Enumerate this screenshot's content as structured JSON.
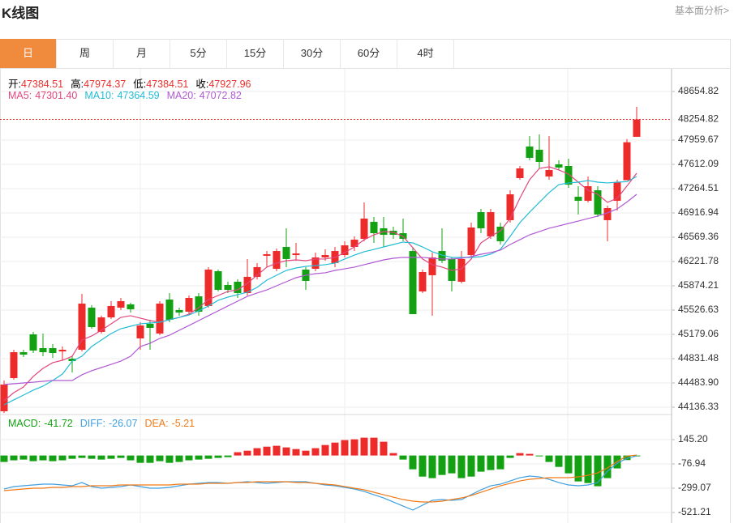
{
  "header": {
    "title": "K线图",
    "link": "基本面分析>"
  },
  "tabs": {
    "items": [
      "日",
      "周",
      "月",
      "5分",
      "15分",
      "30分",
      "60分",
      "4时"
    ],
    "active": 0,
    "active_color": "#f08a3c"
  },
  "chart_data": [
    {
      "type": "candlestick",
      "up_color": "#ee2b2b",
      "down_color": "#13a113",
      "info": [
        {
          "name": "开:",
          "value": 47384.51
        },
        {
          "name": "高:",
          "value": 47974.37
        },
        {
          "name": "低:",
          "value": 47384.51
        },
        {
          "name": "收:",
          "value": 47927.96
        }
      ],
      "info_color": "#e8312f",
      "last_price": 48254.82,
      "last_price_color": "#e03030",
      "ylim": [
        44032,
        48979
      ],
      "yticks": [
        48654.82,
        47959.67,
        47612.09,
        47264.51,
        46916.94,
        46569.36,
        46221.78,
        45874.21,
        45526.63,
        45179.06,
        44831.48,
        {
          "value": 44483.9,
          "label": "44483.90"
        },
        44136.33
      ],
      "grid": true,
      "open": [
        44078,
        44553,
        44924,
        45179,
        44982,
        44982,
        44935,
        44831,
        44959,
        45561,
        45214,
        45422,
        45561,
        45608,
        45121,
        45330,
        45191,
        45677,
        45527,
        45503,
        45723,
        45585,
        46083,
        45886,
        45932,
        45770,
        46002,
        46303,
        46117,
        46430,
        46314,
        46106,
        46117,
        46280,
        46199,
        46314,
        46430,
        46546,
        46789,
        46697,
        46662,
        46627,
        46372,
        45793,
        46025,
        46372,
        46257,
        45932,
        46314,
        46928,
        46581,
        46720,
        46813,
        47415,
        47867,
        47821,
        47438,
        47612,
        47589,
        47148,
        47090,
        47241,
        46813,
        47090,
        47384.51,
        48006
      ],
      "high": [
        44519,
        44959,
        44959,
        45214,
        45191,
        45040,
        45005,
        44866,
        45758,
        45597,
        45446,
        45654,
        45700,
        45631,
        45353,
        45388,
        45654,
        45770,
        45561,
        45735,
        45770,
        46141,
        46106,
        45932,
        45967,
        46257,
        46199,
        46372,
        46407,
        46697,
        46488,
        46141,
        46349,
        46395,
        46430,
        46511,
        46581,
        47068,
        46859,
        46859,
        46720,
        46836,
        46430,
        46106,
        46349,
        46697,
        46280,
        46372,
        46778,
        46975,
        46975,
        46778,
        47241,
        47589,
        48018,
        48041,
        48018,
        47670,
        47693,
        47299,
        47438,
        47299,
        47021,
        47392,
        47974.37,
        48435
      ],
      "low": [
        44055,
        44530,
        44854,
        44912,
        44866,
        44842,
        44808,
        44634,
        44935,
        45260,
        45191,
        45399,
        45527,
        45491,
        44959,
        44959,
        45167,
        45353,
        45446,
        45468,
        45446,
        45561,
        45793,
        45770,
        45700,
        45735,
        45967,
        46141,
        46083,
        46141,
        46233,
        45816,
        46083,
        46233,
        46141,
        46280,
        46372,
        46511,
        46488,
        46430,
        46546,
        46511,
        45468,
        45770,
        45446,
        46199,
        45793,
        45909,
        46280,
        46627,
        46546,
        46465,
        46778,
        47392,
        47670,
        47554,
        47392,
        47531,
        47276,
        46894,
        47068,
        46859,
        46511,
        46952,
        47384.51,
        48006
      ],
      "close": [
        44461,
        44924,
        44889,
        44947,
        44924,
        44912,
        44959,
        44796,
        45619,
        45283,
        45422,
        45585,
        45654,
        45538,
        45306,
        45272,
        45619,
        45388,
        45491,
        45700,
        45503,
        46106,
        45816,
        45816,
        45770,
        46002,
        46141,
        46326,
        46372,
        46257,
        46337,
        45944,
        46280,
        46314,
        46372,
        46453,
        46534,
        46836,
        46627,
        46604,
        46604,
        46546,
        45468,
        46071,
        46280,
        46233,
        45944,
        46257,
        46708,
        46697,
        46928,
        46511,
        47183,
        47554,
        47705,
        47647,
        47531,
        47566,
        47322,
        47090,
        47299,
        46894,
        46986,
        47357,
        47927.96,
        48254.82
      ],
      "series": [
        {
          "name": "MA5:",
          "color": "#e2467e",
          "current": {
            "value": 47301.4,
            "label": "47301.40"
          },
          "values": [
            44229,
            44345,
            44426,
            44577,
            44692,
            44774,
            44808,
            44866,
            45098,
            45156,
            45237,
            45330,
            45422,
            45446,
            45411,
            45376,
            45353,
            45388,
            45422,
            45468,
            45561,
            45677,
            45735,
            45793,
            45816,
            45909,
            46025,
            46141,
            46199,
            46233,
            46245,
            46233,
            46257,
            46257,
            46280,
            46349,
            46430,
            46534,
            46604,
            46650,
            46639,
            46581,
            46419,
            46257,
            46176,
            46141,
            46094,
            46117,
            46257,
            46488,
            46581,
            46662,
            46836,
            47128,
            47392,
            47554,
            47577,
            47531,
            47473,
            47357,
            47241,
            47183,
            47068,
            47126,
            47301.4,
            47485
          ]
        },
        {
          "name": "MA10:",
          "color": "#22bcd4",
          "current": 47364.59,
          "values": [
            44171,
            44241,
            44310,
            44380,
            44438,
            44519,
            44611,
            44796,
            44866,
            45005,
            45098,
            45191,
            45260,
            45295,
            45330,
            45341,
            45353,
            45388,
            45422,
            45457,
            45515,
            45585,
            45666,
            45712,
            45747,
            45782,
            45851,
            45955,
            46025,
            46094,
            46129,
            46152,
            46164,
            46176,
            46199,
            46257,
            46314,
            46361,
            46395,
            46430,
            46465,
            46500,
            46488,
            46430,
            46361,
            46314,
            46280,
            46280,
            46280,
            46291,
            46326,
            46395,
            46581,
            46778,
            46928,
            47068,
            47207,
            47322,
            47346,
            47357,
            47380,
            47357,
            47346,
            47357,
            47364.59,
            47438
          ]
        },
        {
          "name": "MA20:",
          "color": "#b059d4",
          "current": 47072.82,
          "values": [
            44461,
            44472,
            44484,
            44495,
            44507,
            44519,
            44519,
            44519,
            44600,
            44658,
            44704,
            44750,
            44796,
            44866,
            45005,
            45052,
            45121,
            45167,
            45237,
            45306,
            45376,
            45446,
            45515,
            45585,
            45654,
            45723,
            45770,
            45816,
            45874,
            45932,
            45990,
            46025,
            46048,
            46060,
            46094,
            46117,
            46141,
            46176,
            46210,
            46245,
            46268,
            46280,
            46280,
            46280,
            46268,
            46257,
            46257,
            46268,
            46291,
            46326,
            46349,
            46384,
            46465,
            46534,
            46604,
            46650,
            46697,
            46731,
            46766,
            46800,
            46836,
            46871,
            46917,
            46975,
            47072.82,
            47183
          ]
        }
      ]
    },
    {
      "type": "macd",
      "ylim": [
        -610,
        375
      ],
      "yticks": [
        {
          "value": 145.2,
          "label": "145.20"
        },
        -76.94,
        -299.07,
        -521.21
      ],
      "grid": true,
      "histogram": {
        "name": "MACD:",
        "color": "#13a113",
        "up_color": "#ee2b2b",
        "down_color": "#13a113",
        "current": -41.72,
        "values": [
          -59,
          -44,
          -37,
          -52,
          -44,
          -52,
          -44,
          -30,
          -22,
          -30,
          -37,
          -30,
          -22,
          -44,
          -67,
          -67,
          -52,
          -67,
          -59,
          -44,
          -37,
          -30,
          -22,
          -15,
          30,
          44,
          67,
          81,
          89,
          74,
          59,
          44,
          67,
          96,
          118,
          141,
          148,
          163,
          163,
          126,
          22,
          -37,
          -126,
          -193,
          -207,
          -178,
          -163,
          -207,
          -193,
          -148,
          -133,
          -126,
          -22,
          22,
          15,
          -7,
          -59,
          -104,
          -163,
          -237,
          -252,
          -281,
          -207,
          -118,
          -41.72,
          -7
        ]
      },
      "series": [
        {
          "name": "DIFF:",
          "color": "#3f9fe0",
          "current": -26.07,
          "values": [
            -306.5,
            -284.3,
            -276.9,
            -269.5,
            -262.1,
            -262.1,
            -269.5,
            -276.9,
            -247.3,
            -284.3,
            -299.1,
            -291.7,
            -284.3,
            -269.5,
            -284.3,
            -299.1,
            -299.1,
            -291.7,
            -276.9,
            -262.1,
            -254.7,
            -247.3,
            -247.3,
            -254.7,
            -247.3,
            -239.9,
            -247.3,
            -254.7,
            -247.3,
            -239.9,
            -239.9,
            -239.9,
            -254.7,
            -269.5,
            -276.9,
            -291.7,
            -306.5,
            -328.7,
            -358.4,
            -388,
            -425,
            -462,
            -499.1,
            -454.6,
            -410.2,
            -402.8,
            -410.2,
            -402.8,
            -358.4,
            -313.9,
            -276.9,
            -262.1,
            -232.5,
            -202.9,
            -188.1,
            -195.5,
            -217.7,
            -247.3,
            -269.5,
            -276.9,
            -269.5,
            -247.3,
            -143.6,
            -69.6,
            -26.07,
            -3
          ]
        },
        {
          "name": "DEA:",
          "color": "#f07a18",
          "current": -5.21,
          "values": [
            -321.3,
            -313.9,
            -306.5,
            -299.1,
            -299.1,
            -291.7,
            -291.7,
            -284.3,
            -284.3,
            -276.9,
            -276.9,
            -276.9,
            -269.5,
            -269.5,
            -269.5,
            -269.5,
            -269.5,
            -269.5,
            -262.1,
            -262.1,
            -262.1,
            -254.7,
            -254.7,
            -254.7,
            -247.3,
            -247.3,
            -239.9,
            -239.9,
            -239.9,
            -239.9,
            -247.3,
            -247.3,
            -254.7,
            -262.1,
            -269.5,
            -284.3,
            -299.1,
            -313.9,
            -336.1,
            -358.4,
            -380.6,
            -402.8,
            -417.6,
            -425,
            -425,
            -417.6,
            -402.8,
            -388,
            -365.8,
            -336.1,
            -306.5,
            -276.9,
            -254.7,
            -232.5,
            -217.7,
            -210.3,
            -202.9,
            -202.9,
            -202.9,
            -195.5,
            -180.7,
            -158.4,
            -114,
            -54.8,
            -5.21,
            4.4
          ]
        }
      ]
    }
  ]
}
